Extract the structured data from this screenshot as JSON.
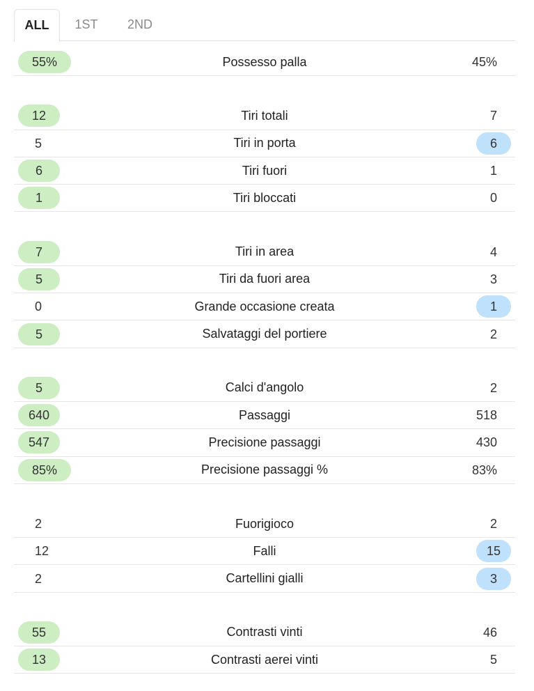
{
  "tabs": [
    {
      "label": "ALL",
      "active": true
    },
    {
      "label": "1ST",
      "active": false
    },
    {
      "label": "2ND",
      "active": false
    }
  ],
  "colors": {
    "home_highlight": "#cdeec3",
    "away_highlight": "#bfe1fb"
  },
  "groups": [
    {
      "rows": [
        {
          "label": "Possesso palla",
          "home": "55%",
          "away": "45%",
          "winner": "home"
        }
      ]
    },
    {
      "rows": [
        {
          "label": "Tiri totali",
          "home": "12",
          "away": "7",
          "winner": "home"
        },
        {
          "label": "Tiri in porta",
          "home": "5",
          "away": "6",
          "winner": "away"
        },
        {
          "label": "Tiri fuori",
          "home": "6",
          "away": "1",
          "winner": "home"
        },
        {
          "label": "Tiri bloccati",
          "home": "1",
          "away": "0",
          "winner": "home"
        }
      ]
    },
    {
      "rows": [
        {
          "label": "Tiri in area",
          "home": "7",
          "away": "4",
          "winner": "home"
        },
        {
          "label": "Tiri da fuori area",
          "home": "5",
          "away": "3",
          "winner": "home"
        },
        {
          "label": "Grande occasione creata",
          "home": "0",
          "away": "1",
          "winner": "away"
        },
        {
          "label": "Salvataggi del portiere",
          "home": "5",
          "away": "2",
          "winner": "home"
        }
      ]
    },
    {
      "rows": [
        {
          "label": "Calci d'angolo",
          "home": "5",
          "away": "2",
          "winner": "home"
        },
        {
          "label": "Passaggi",
          "home": "640",
          "away": "518",
          "winner": "home"
        },
        {
          "label": "Precisione passaggi",
          "home": "547",
          "away": "430",
          "winner": "home"
        },
        {
          "label": "Precisione passaggi %",
          "home": "85%",
          "away": "83%",
          "winner": "home"
        }
      ]
    },
    {
      "rows": [
        {
          "label": "Fuorigioco",
          "home": "2",
          "away": "2",
          "winner": "none"
        },
        {
          "label": "Falli",
          "home": "12",
          "away": "15",
          "winner": "away"
        },
        {
          "label": "Cartellini gialli",
          "home": "2",
          "away": "3",
          "winner": "away"
        }
      ]
    },
    {
      "rows": [
        {
          "label": "Contrasti vinti",
          "home": "55",
          "away": "46",
          "winner": "home"
        },
        {
          "label": "Contrasti aerei vinti",
          "home": "13",
          "away": "5",
          "winner": "home"
        }
      ]
    }
  ]
}
